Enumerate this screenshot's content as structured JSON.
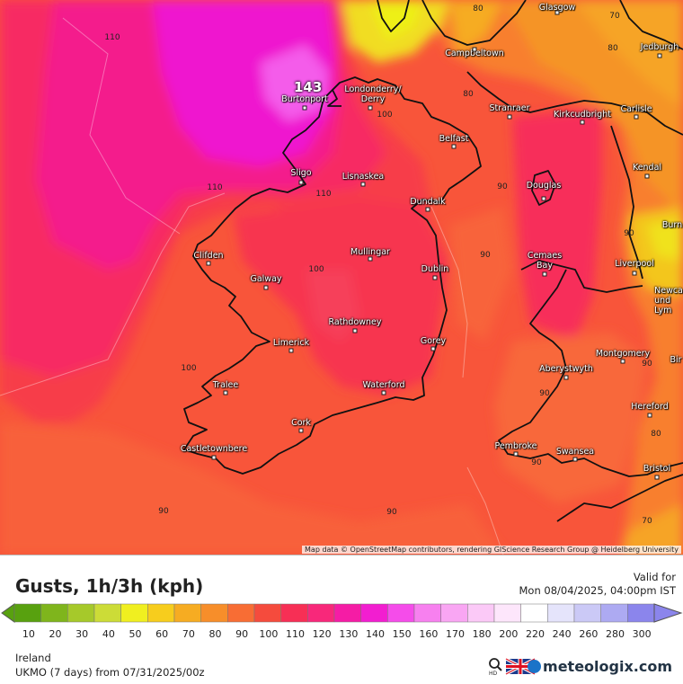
{
  "map": {
    "max_label": "143",
    "attribution": "Map data © OpenStreetMap contributors, rendering GIScience Research Group @ Heidelberg University",
    "cities": [
      {
        "name": "Glasgow"
      },
      {
        "name": "Campbeltown"
      },
      {
        "name": "Jedburgh"
      },
      {
        "name": "Burtonport"
      },
      {
        "name": "Londonderry/\nDerry"
      },
      {
        "name": "Stranraer"
      },
      {
        "name": "Kirkcudbright"
      },
      {
        "name": "Carlisle"
      },
      {
        "name": "Belfast"
      },
      {
        "name": "Sligo"
      },
      {
        "name": "Lisnaskea"
      },
      {
        "name": "Kendal"
      },
      {
        "name": "Douglas"
      },
      {
        "name": "Dundalk"
      },
      {
        "name": "Mullingar"
      },
      {
        "name": "Clifden"
      },
      {
        "name": "Dublin"
      },
      {
        "name": "Cemaes\nBay"
      },
      {
        "name": "Liverpool"
      },
      {
        "name": "Galway"
      },
      {
        "name": "Rathdowney"
      },
      {
        "name": "Limerick"
      },
      {
        "name": "Gorey"
      },
      {
        "name": "Montgomery"
      },
      {
        "name": "Aberystwyth"
      },
      {
        "name": "Tralee"
      },
      {
        "name": "Waterford"
      },
      {
        "name": "Hereford"
      },
      {
        "name": "Cork"
      },
      {
        "name": "Castletownbere"
      },
      {
        "name": "Pembroke"
      },
      {
        "name": "Swansea"
      },
      {
        "name": "Bristol"
      }
    ],
    "edge_labels": [
      "Burn",
      "Newca\nund\nLym",
      "Bir"
    ],
    "isolines": [
      "110",
      "70",
      "80",
      "80",
      "100",
      "90",
      "110",
      "110",
      "100",
      "90",
      "100",
      "90",
      "90",
      "90",
      "80",
      "90",
      "90",
      "90",
      "70",
      "80"
    ]
  },
  "legend": {
    "title": "Gusts, 1h/3h (kph)",
    "valid_label": "Valid for",
    "valid_time": "Mon 08/04/2025, 04:00pm IST",
    "region": "Ireland",
    "model": "UKMO (7 days) from 07/31/2025/00z",
    "brand": "meteologix.com",
    "scale": [
      {
        "v": "10",
        "c": "#58a10f"
      },
      {
        "v": "20",
        "c": "#7fb51c"
      },
      {
        "v": "30",
        "c": "#a6c92a"
      },
      {
        "v": "40",
        "c": "#ccdc37"
      },
      {
        "v": "50",
        "c": "#f0ef20"
      },
      {
        "v": "60",
        "c": "#f7cd1d"
      },
      {
        "v": "70",
        "c": "#f6ac22"
      },
      {
        "v": "80",
        "c": "#f78e2a"
      },
      {
        "v": "90",
        "c": "#f86d34"
      },
      {
        "v": "100",
        "c": "#f54b3d"
      },
      {
        "v": "110",
        "c": "#f72f55"
      },
      {
        "v": "120",
        "c": "#f8287a"
      },
      {
        "v": "130",
        "c": "#f51ca5"
      },
      {
        "v": "140",
        "c": "#f21ed0"
      },
      {
        "v": "150",
        "c": "#f54cea"
      },
      {
        "v": "160",
        "c": "#f780ef"
      },
      {
        "v": "170",
        "c": "#f9a6f3"
      },
      {
        "v": "180",
        "c": "#fbc9f7"
      },
      {
        "v": "200",
        "c": "#fde6fb"
      },
      {
        "v": "220",
        "c": "#ffffff"
      },
      {
        "v": "240",
        "c": "#e5e4fb"
      },
      {
        "v": "260",
        "c": "#cbc9f6"
      },
      {
        "v": "280",
        "c": "#adaaf2"
      },
      {
        "v": "300",
        "c": "#8b85ec"
      }
    ]
  }
}
